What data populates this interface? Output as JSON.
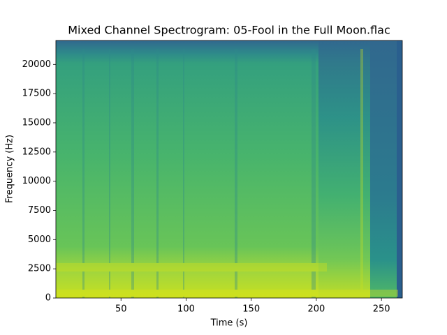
{
  "chart_data": {
    "type": "spectrogram",
    "title": "Mixed Channel Spectrogram: 05-Fool in the Full Moon.flac",
    "x_label": "Time (s)",
    "y_label": "Frequency (Hz)",
    "xlim": [
      0,
      266
    ],
    "xticks": [
      50,
      100,
      150,
      200,
      250
    ],
    "ylim": [
      0,
      22050
    ],
    "yticks": [
      0,
      2500,
      5000,
      7500,
      10000,
      12500,
      15000,
      17500,
      20000
    ]
  }
}
